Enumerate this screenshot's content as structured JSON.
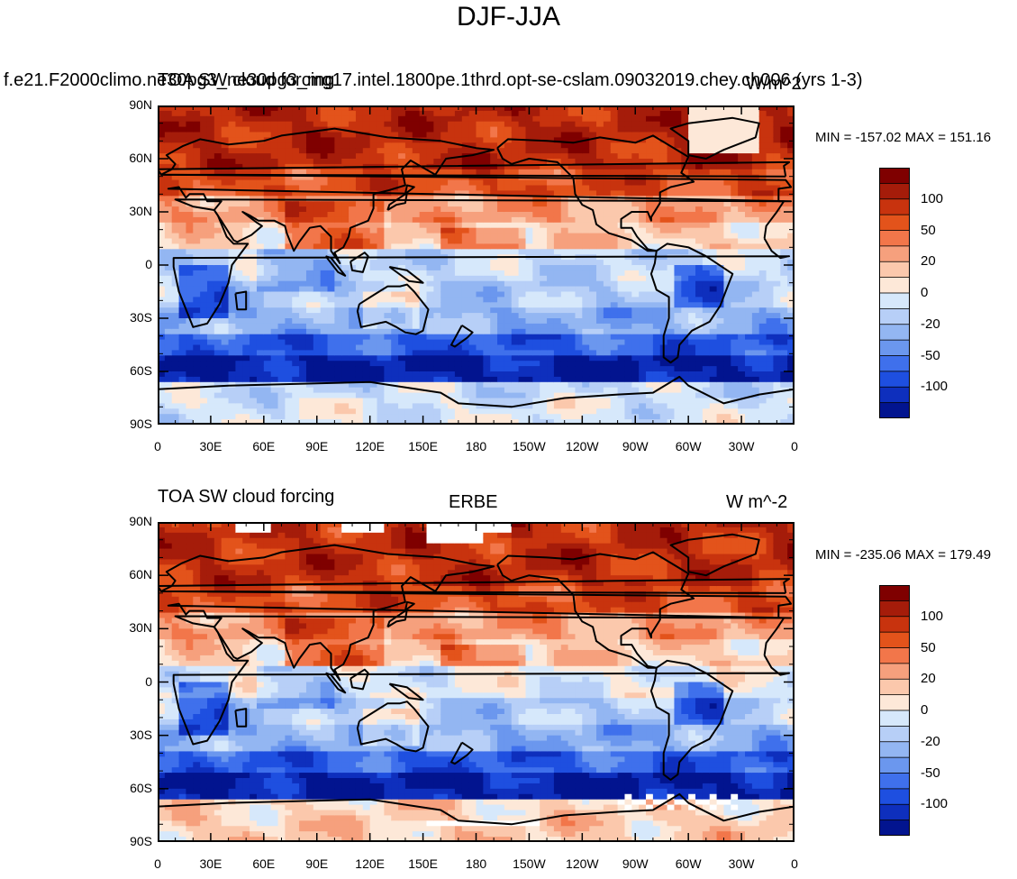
{
  "title": "DJF-JJA",
  "chart_data": [
    {
      "type": "heatmap",
      "title_left": "f.e21.F2000climo.ne30pg3_ne30pg3_mg17.intel.1800pe.1thrd.opt-se-cslam.09032019.chey.ch006 (yrs 1-3)",
      "title_center": "TOA SW cloud forcing",
      "title_right": "W/m^2",
      "min_max": "MIN = -157.02 MAX = 151.16",
      "yticks": [
        "90N",
        "60N",
        "30N",
        "0",
        "30S",
        "60S",
        "90S"
      ],
      "xticks": [
        "0",
        "30E",
        "60E",
        "90E",
        "120E",
        "150E",
        "180",
        "150W",
        "120W",
        "90W",
        "60W",
        "30W",
        "0"
      ],
      "colorbar_labels": [
        "100",
        "50",
        "20",
        "0",
        "-20",
        "-50",
        "-100"
      ]
    },
    {
      "type": "heatmap",
      "title_left": "TOA SW cloud forcing",
      "title_center": "ERBE",
      "title_right": "W m^-2",
      "min_max": "MIN = -235.06 MAX = 179.49",
      "yticks": [
        "90N",
        "60N",
        "30N",
        "0",
        "30S",
        "60S",
        "90S"
      ],
      "xticks": [
        "0",
        "30E",
        "60E",
        "90E",
        "120E",
        "150E",
        "180",
        "150W",
        "120W",
        "90W",
        "60W",
        "30W",
        "0"
      ],
      "colorbar_labels": [
        "100",
        "50",
        "20",
        "0",
        "-20",
        "-50",
        "-100"
      ]
    }
  ],
  "colors": [
    "#7f0000",
    "#a51c0a",
    "#c8330e",
    "#e3531b",
    "#f2764a",
    "#f6a07d",
    "#fbc8ac",
    "#fde8d8",
    "#d6e8fb",
    "#b7cff7",
    "#93b6f2",
    "#6b97ee",
    "#3f70ec",
    "#1e4fe0",
    "#0e2fbd",
    "#02148f"
  ]
}
